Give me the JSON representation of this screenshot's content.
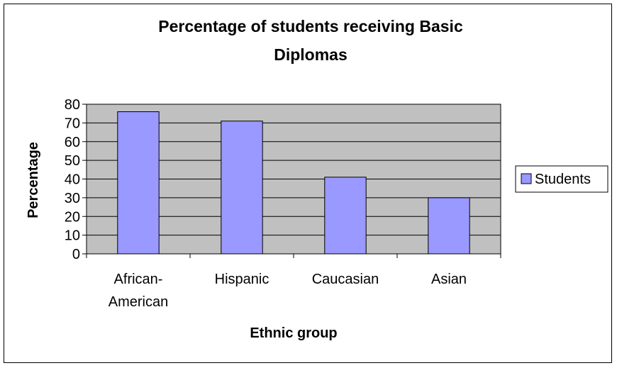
{
  "chart_data": {
    "type": "bar",
    "title_line1": "Percentage of students receiving Basic",
    "title_line2": "Diplomas",
    "categories": [
      "African-American",
      "Hispanic",
      "Caucasian",
      "Asian"
    ],
    "category_lines": [
      [
        "African-",
        "American"
      ],
      [
        "Hispanic"
      ],
      [
        "Caucasian"
      ],
      [
        "Asian"
      ]
    ],
    "series": [
      {
        "name": "Students",
        "values": [
          76,
          71,
          41,
          30
        ]
      }
    ],
    "xlabel": "Ethnic group",
    "ylabel": "Percentage",
    "ylim": [
      0,
      80
    ],
    "yticks": [
      0,
      10,
      20,
      30,
      40,
      50,
      60,
      70,
      80
    ],
    "grid": true,
    "legend_position": "right",
    "colors": {
      "bar_fill": "#9999ff",
      "plot_background": "#c0c0c0",
      "gridline": "#000000",
      "border": "#000000"
    }
  }
}
